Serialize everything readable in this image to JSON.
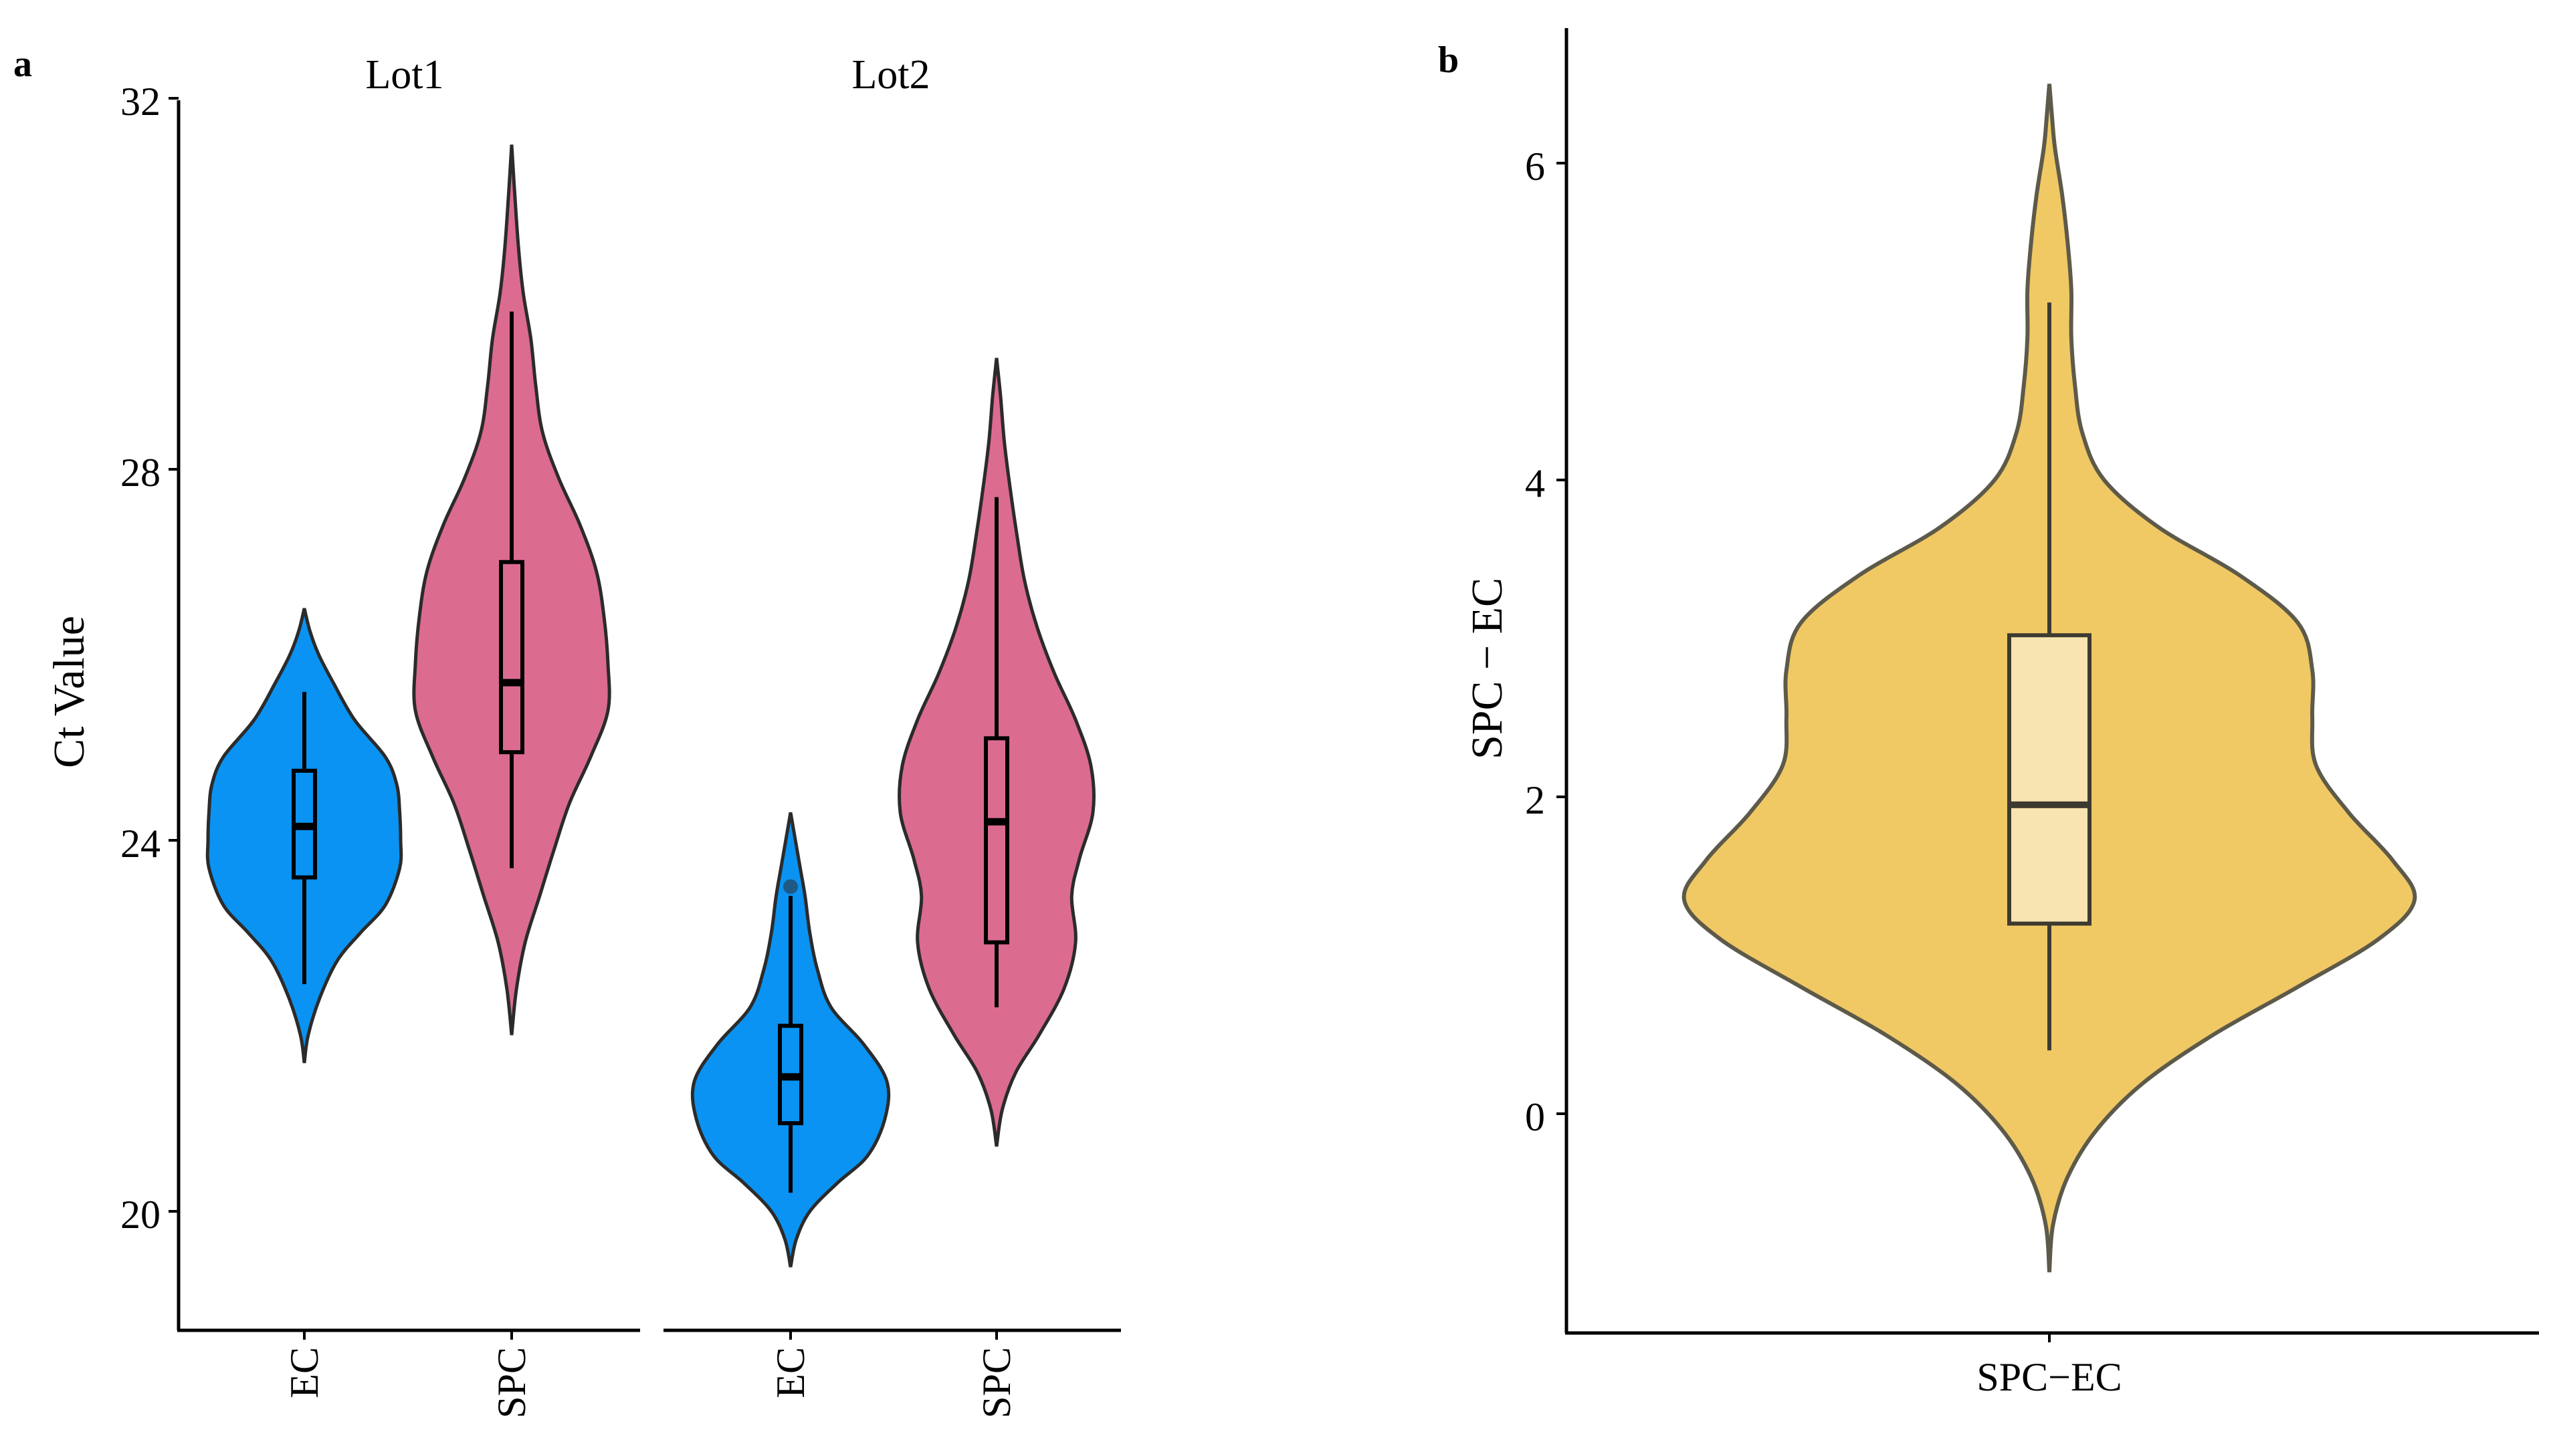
{
  "chart_data": [
    {
      "panel": "a",
      "type": "violin",
      "ylabel": "Ct Value",
      "ylim": [
        18.5,
        32
      ],
      "yticks": [
        20,
        24,
        28,
        32
      ],
      "fill_colors": {
        "EC": "#0a93f2",
        "SPC": "#dc6b90"
      },
      "facets": [
        {
          "title": "Lot1",
          "groups": [
            {
              "name": "EC",
              "stats": {
                "min": 22.45,
                "q1": 23.6,
                "median": 24.15,
                "q3": 24.75,
                "max": 25.6
              },
              "outliers": [],
              "density": {
                "y": [
                  21.6,
                  21.9,
                  22.3,
                  22.7,
                  23.0,
                  23.3,
                  23.7,
                  24.0,
                  24.3,
                  24.6,
                  24.9,
                  25.3,
                  25.7,
                  26.0,
                  26.25,
                  26.5
                ],
                "w": [
                  0.0,
                  0.04,
                  0.16,
                  0.34,
                  0.58,
                  0.84,
                  0.99,
                  1.0,
                  0.99,
                  0.96,
                  0.84,
                  0.52,
                  0.3,
                  0.15,
                  0.06,
                  0.0
                ]
              }
            },
            {
              "name": "SPC",
              "stats": {
                "min": 23.7,
                "q1": 24.95,
                "median": 25.7,
                "q3": 27.0,
                "max": 29.7
              },
              "outliers": [],
              "density": {
                "y": [
                  21.9,
                  22.4,
                  22.9,
                  23.4,
                  23.9,
                  24.4,
                  24.9,
                  25.4,
                  25.9,
                  26.4,
                  26.9,
                  27.4,
                  27.9,
                  28.4,
                  28.9,
                  29.4,
                  29.9,
                  30.4,
                  31.0,
                  31.5
                ],
                "w": [
                  0.0,
                  0.05,
                  0.14,
                  0.29,
                  0.44,
                  0.6,
                  0.82,
                  1.0,
                  1.0,
                  0.96,
                  0.88,
                  0.71,
                  0.49,
                  0.32,
                  0.25,
                  0.2,
                  0.12,
                  0.07,
                  0.03,
                  0.0
                ]
              }
            }
          ]
        },
        {
          "title": "Lot2",
          "groups": [
            {
              "name": "EC",
              "stats": {
                "min": 20.2,
                "q1": 20.95,
                "median": 21.45,
                "q3": 22.0,
                "max": 23.4
              },
              "outliers": [
                23.5
              ],
              "density": {
                "y": [
                  19.4,
                  19.7,
                  20.0,
                  20.3,
                  20.6,
                  21.0,
                  21.4,
                  21.8,
                  22.2,
                  22.6,
                  23.0,
                  23.4,
                  23.7,
                  24.0,
                  24.3
                ],
                "w": [
                  0.0,
                  0.06,
                  0.2,
                  0.48,
                  0.8,
                  0.98,
                  1.0,
                  0.76,
                  0.42,
                  0.28,
                  0.2,
                  0.15,
                  0.1,
                  0.05,
                  0.0
                ]
              }
            },
            {
              "name": "SPC",
              "stats": {
                "min": 22.2,
                "q1": 22.9,
                "median": 24.2,
                "q3": 25.1,
                "max": 27.7
              },
              "outliers": [],
              "density": {
                "y": [
                  20.7,
                  21.1,
                  21.5,
                  21.9,
                  22.4,
                  22.9,
                  23.4,
                  23.8,
                  24.3,
                  24.8,
                  25.3,
                  25.8,
                  26.3,
                  26.8,
                  27.3,
                  27.8,
                  28.3,
                  28.8,
                  29.2
                ],
                "w": [
                  0.0,
                  0.06,
                  0.2,
                  0.44,
                  0.7,
                  0.82,
                  0.78,
                  0.86,
                  1.0,
                  0.98,
                  0.82,
                  0.6,
                  0.42,
                  0.29,
                  0.21,
                  0.14,
                  0.08,
                  0.04,
                  0.0
                ]
              }
            }
          ]
        }
      ]
    },
    {
      "panel": "b",
      "type": "violin",
      "ylabel": "SPC − EC",
      "ylim": [
        -1.3,
        6.9
      ],
      "yticks": [
        0,
        2,
        4,
        6
      ],
      "categories": [
        "SPC−EC"
      ],
      "fill_color": "#f0c965",
      "box_fill": "#f8e4b0",
      "stats": {
        "min": 0.4,
        "q1": 1.2,
        "median": 1.95,
        "q3": 3.02,
        "max": 5.12
      },
      "density": {
        "y": [
          -1.0,
          -0.7,
          -0.4,
          -0.1,
          0.2,
          0.5,
          0.8,
          1.1,
          1.35,
          1.6,
          1.9,
          2.2,
          2.5,
          2.8,
          3.1,
          3.4,
          3.7,
          4.0,
          4.3,
          4.6,
          4.9,
          5.2,
          5.5,
          5.8,
          6.1,
          6.3,
          6.5
        ],
        "w": [
          0.0,
          0.01,
          0.05,
          0.13,
          0.26,
          0.45,
          0.68,
          0.9,
          1.0,
          0.94,
          0.82,
          0.73,
          0.72,
          0.72,
          0.68,
          0.52,
          0.3,
          0.15,
          0.09,
          0.07,
          0.06,
          0.06,
          0.05,
          0.035,
          0.015,
          0.007,
          0.0
        ]
      }
    }
  ]
}
